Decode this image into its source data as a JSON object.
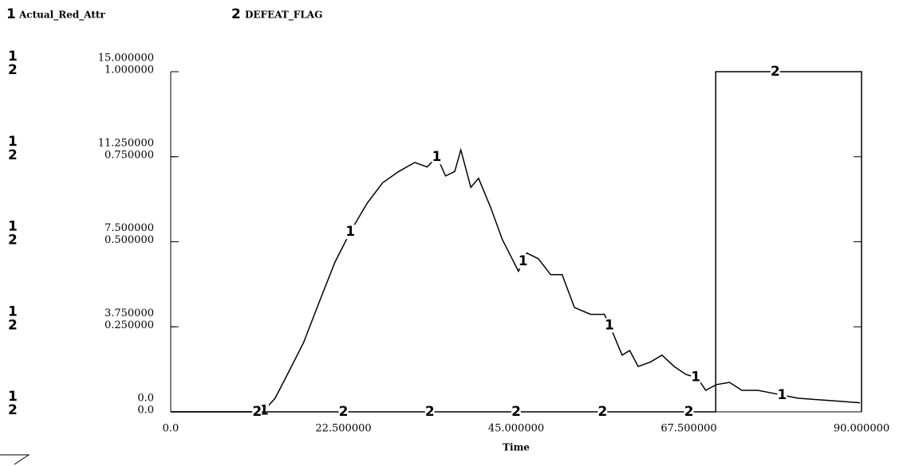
{
  "chart_data": {
    "type": "line",
    "x_label": "Time",
    "x": [
      0,
      12,
      13.6,
      15.2,
      17.3,
      19.3,
      21.4,
      23.5,
      25.6,
      27.6,
      29.7,
      31.8,
      33.4,
      34.7,
      35.8,
      37,
      37.8,
      39.1,
      40.1,
      41.7,
      43.2,
      45.3,
      46.4,
      47.9,
      49.5,
      51,
      52.6,
      54.7,
      56.5,
      57.7,
      58.8,
      59.8,
      60.9,
      62.5,
      64,
      65.6,
      67.1,
      68.6,
      69.7,
      71.1,
      72.8,
      74.4,
      76.5,
      78,
      81.7,
      85.8,
      89.8
    ],
    "xlim": [
      0,
      90
    ],
    "xticks": [
      {
        "value": 0,
        "label": "0.0"
      },
      {
        "value": 22.5,
        "label": "22.500000"
      },
      {
        "value": 45,
        "label": "45.000000"
      },
      {
        "value": 67.5,
        "label": "67.500000"
      },
      {
        "value": 90,
        "label": "90.000000"
      }
    ],
    "ylim": [
      0,
      15
    ],
    "yticks": [
      {
        "value": 0,
        "label": "0.0"
      },
      {
        "value": 3.75,
        "label": "3.750000"
      },
      {
        "value": 7.5,
        "label": "7.500000"
      },
      {
        "value": 11.25,
        "label": "11.250000"
      },
      {
        "value": 15,
        "label": "15.000000"
      }
    ],
    "y2lim": [
      0,
      1
    ],
    "y2ticks": [
      {
        "value": 0,
        "label": "0.0"
      },
      {
        "value": 0.25,
        "label": "0.250000"
      },
      {
        "value": 0.5,
        "label": "0.500000"
      },
      {
        "value": 0.75,
        "label": "0.750000"
      },
      {
        "value": 1,
        "label": "1.000000"
      }
    ],
    "series": [
      {
        "label": "1",
        "name": "Actual_Red_Attr",
        "color": "#000000",
        "values": [
          0,
          0,
          0.6,
          1.65,
          3.05,
          4.8,
          6.6,
          8.0,
          9.2,
          10.1,
          10.6,
          11.0,
          10.8,
          11.25,
          10.4,
          10.6,
          11.55,
          9.9,
          10.3,
          9.0,
          7.6,
          6.2,
          7.0,
          6.75,
          6.05,
          6.05,
          4.6,
          4.3,
          4.3,
          3.4,
          2.5,
          2.7,
          2.0,
          2.2,
          2.5,
          2.0,
          1.65,
          1.5,
          0.95,
          1.2,
          1.3,
          0.95,
          0.95,
          0.85,
          0.6,
          0.5,
          0.4
        ]
      },
      {
        "label": "2",
        "name": "DEFEAT_FLAG",
        "color": "#000000",
        "axis": "y2",
        "x": [
          0,
          71,
          71,
          90,
          90
        ],
        "values": [
          0,
          0,
          1,
          1,
          0
        ]
      }
    ]
  }
}
